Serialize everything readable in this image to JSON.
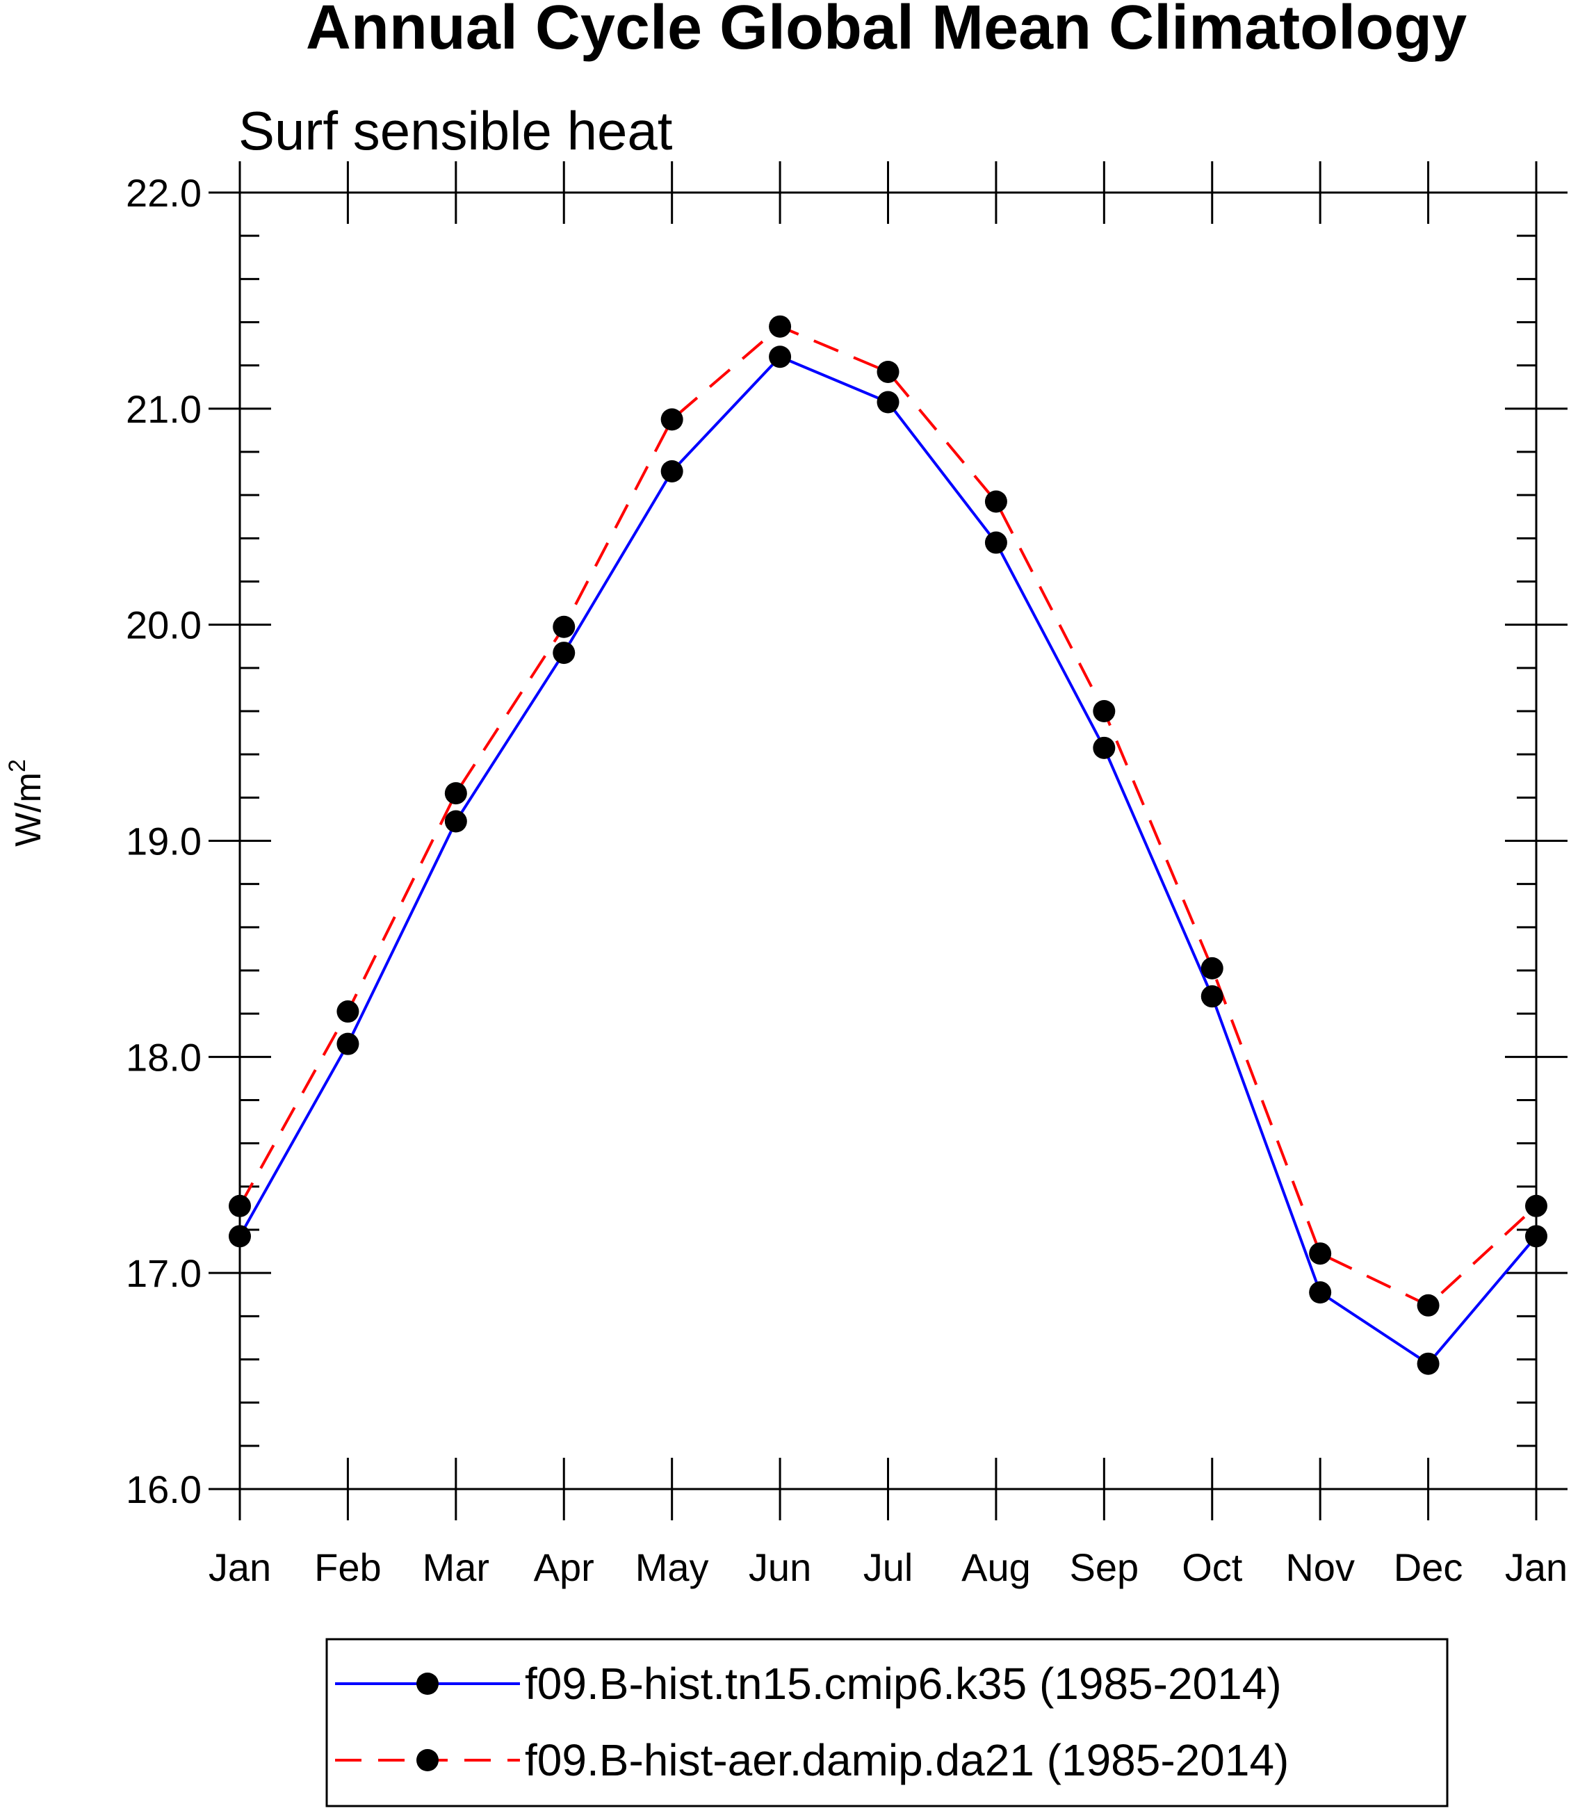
{
  "chart_data": {
    "type": "line",
    "title": "Annual Cycle Global Mean Climatology",
    "subtitle": "Surf sensible heat",
    "xlabel": "",
    "ylabel": "W/m",
    "ylabel_superscript": "2",
    "categories": [
      "Jan",
      "Feb",
      "Mar",
      "Apr",
      "May",
      "Jun",
      "Jul",
      "Aug",
      "Sep",
      "Oct",
      "Nov",
      "Dec",
      "Jan"
    ],
    "ylim": [
      16.0,
      22.0
    ],
    "yticks": [
      16.0,
      17.0,
      18.0,
      19.0,
      20.0,
      21.0,
      22.0
    ],
    "ytick_labels": [
      "16.0",
      "17.0",
      "18.0",
      "19.0",
      "20.0",
      "21.0",
      "22.0"
    ],
    "y_minor_step": 0.2,
    "legend_position": "bottom",
    "series": [
      {
        "name": "f09.B-hist.tn15.cmip6.k35 (1985-2014)",
        "color": "#0000ff",
        "line_style": "solid",
        "marker": "filled-circle",
        "values": [
          17.17,
          18.06,
          19.09,
          19.87,
          20.71,
          21.24,
          21.03,
          20.38,
          19.43,
          18.28,
          16.91,
          16.58,
          17.17
        ]
      },
      {
        "name": "f09.B-hist-aer.damip.da21 (1985-2014)",
        "color": "#ff0000",
        "line_style": "dashed",
        "marker": "filled-circle",
        "values": [
          17.31,
          18.21,
          19.22,
          19.99,
          20.95,
          21.38,
          21.17,
          20.57,
          19.6,
          18.41,
          17.09,
          16.85,
          17.31
        ]
      }
    ]
  }
}
